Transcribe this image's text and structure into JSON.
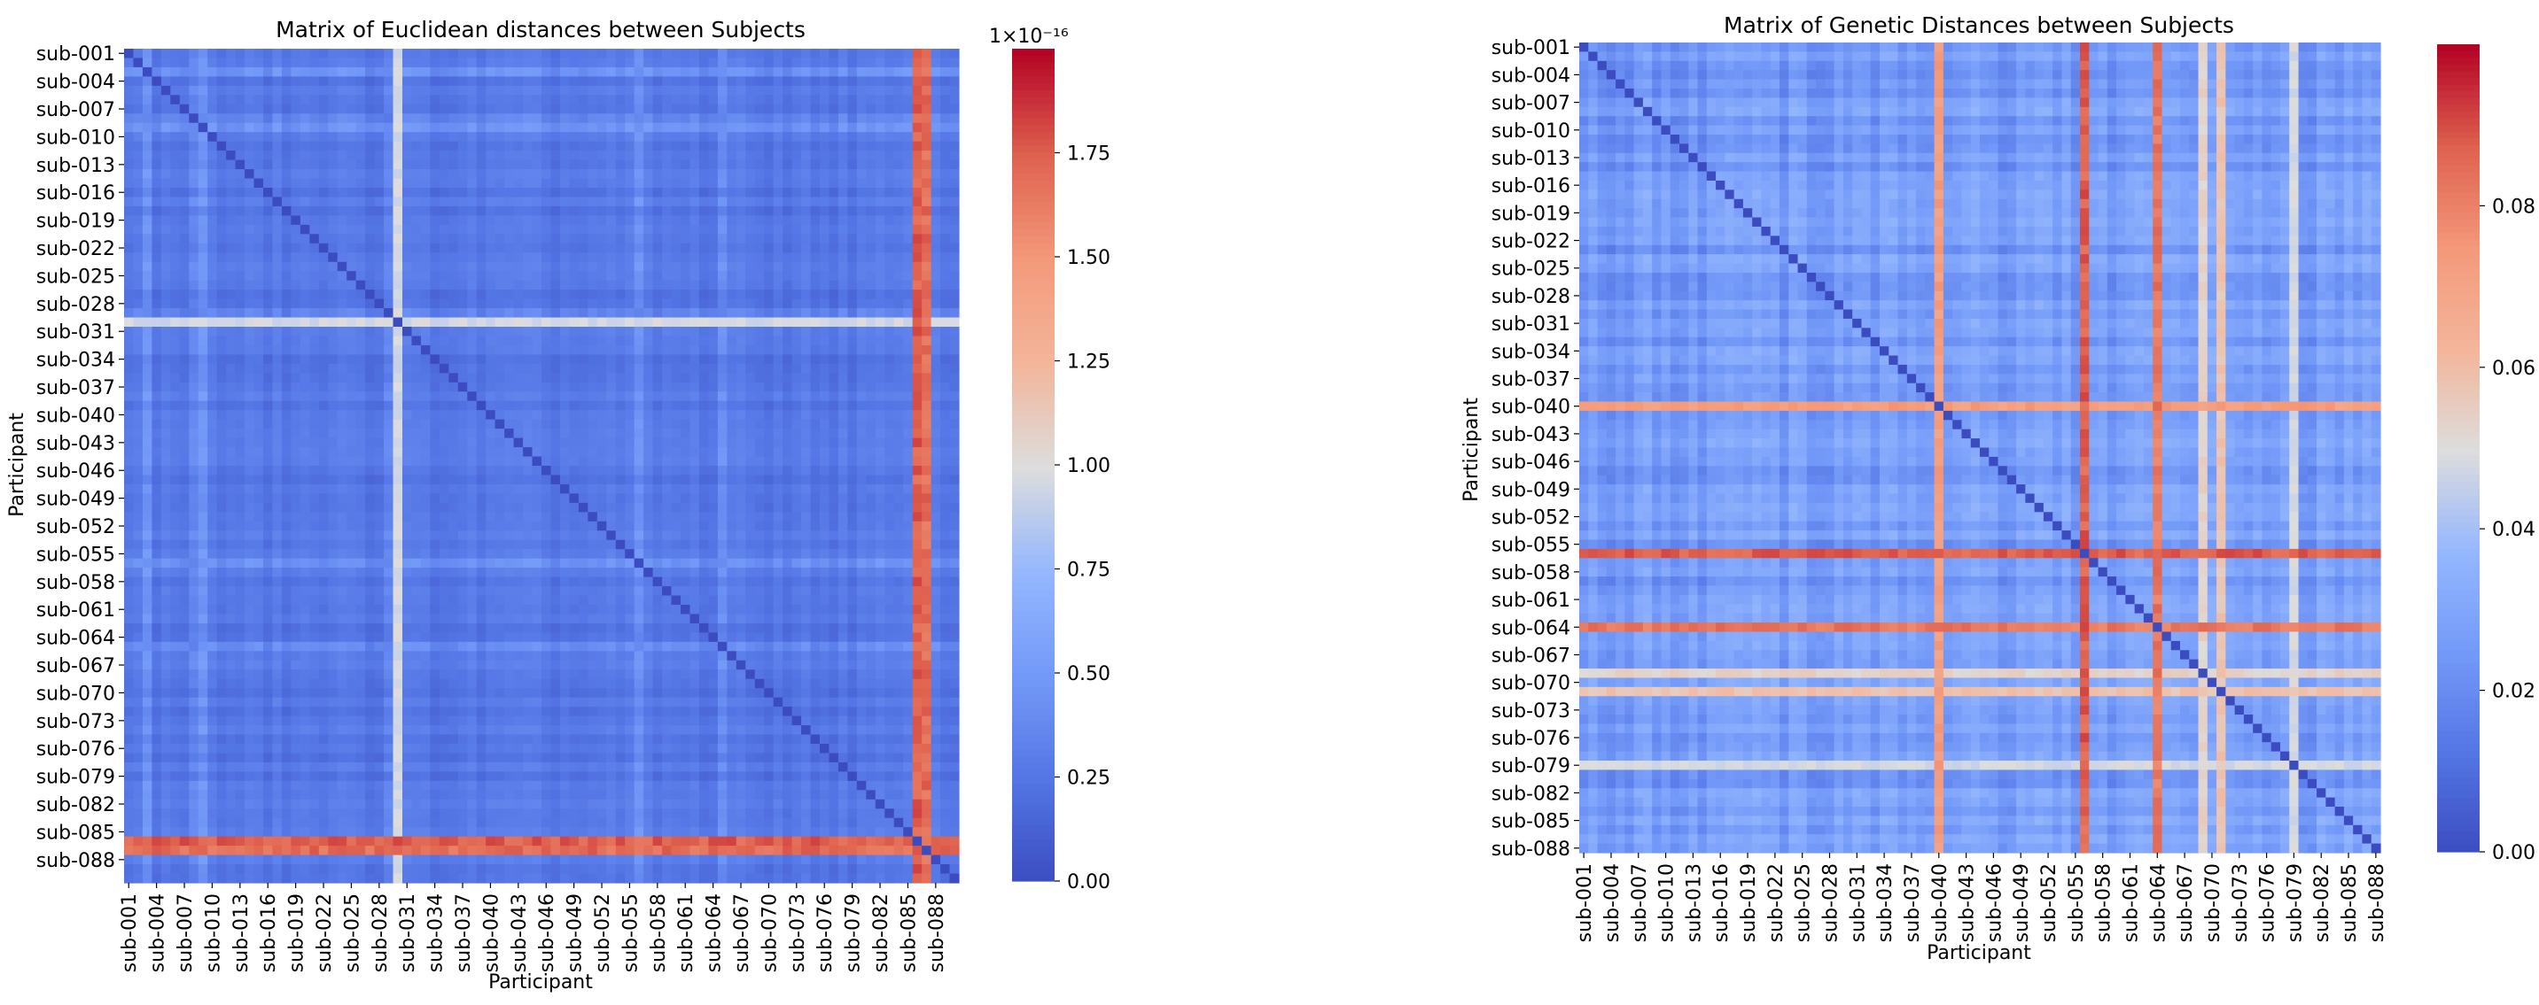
{
  "chart_data": [
    {
      "type": "heatmap",
      "title": "Matrix of Euclidean distances between Subjects",
      "xlabel": "Participant",
      "ylabel": "Participant",
      "n": 90,
      "subjects_prefix": "sub-",
      "y_tick_labels": [
        "sub-001",
        "sub-004",
        "sub-007",
        "sub-010",
        "sub-013",
        "sub-016",
        "sub-019",
        "sub-022",
        "sub-025",
        "sub-028",
        "sub-031",
        "sub-034",
        "sub-037",
        "sub-040",
        "sub-043",
        "sub-046",
        "sub-049",
        "sub-052",
        "sub-055",
        "sub-058",
        "sub-061",
        "sub-064",
        "sub-067",
        "sub-070",
        "sub-073",
        "sub-076",
        "sub-079",
        "sub-082",
        "sub-085",
        "sub-088"
      ],
      "x_tick_labels": [
        "sub-001",
        "sub-004",
        "sub-007",
        "sub-010",
        "sub-013",
        "sub-016",
        "sub-019",
        "sub-022",
        "sub-025",
        "sub-028",
        "sub-031",
        "sub-034",
        "sub-037",
        "sub-040",
        "sub-043",
        "sub-046",
        "sub-049",
        "sub-052",
        "sub-055",
        "sub-058",
        "sub-061",
        "sub-064",
        "sub-067",
        "sub-070",
        "sub-073",
        "sub-076",
        "sub-079",
        "sub-082",
        "sub-085",
        "sub-088"
      ],
      "colorbar": {
        "colormap": "coolwarm",
        "vmin": 0.0,
        "vmax": 2.0,
        "ticks": [
          "0.00",
          "0.25",
          "0.50",
          "0.75",
          "1.00",
          "1.25",
          "1.50",
          "1.75"
        ],
        "tick_values": [
          0,
          0.25,
          0.5,
          0.75,
          1.0,
          1.25,
          1.5,
          1.75
        ],
        "scale_label": "1×10⁻¹⁶"
      },
      "base_value": 0.25,
      "highlight_rows": [
        {
          "subject": "sub-030",
          "value": 1.0
        },
        {
          "subject": "sub-086",
          "value": 1.8
        },
        {
          "subject": "sub-087",
          "value": 1.75
        }
      ],
      "minor_bright_rows": [
        "sub-003",
        "sub-008",
        "sub-009",
        "sub-029",
        "sub-056",
        "sub-065"
      ]
    },
    {
      "type": "heatmap",
      "title": "Matrix of Genetic Distances between Subjects",
      "xlabel": "Participant",
      "ylabel": "Participant",
      "n": 88,
      "subjects_prefix": "sub-",
      "y_tick_labels": [
        "sub-001",
        "sub-004",
        "sub-007",
        "sub-010",
        "sub-013",
        "sub-016",
        "sub-019",
        "sub-022",
        "sub-025",
        "sub-028",
        "sub-031",
        "sub-034",
        "sub-037",
        "sub-040",
        "sub-043",
        "sub-046",
        "sub-049",
        "sub-052",
        "sub-055",
        "sub-058",
        "sub-061",
        "sub-064",
        "sub-067",
        "sub-070",
        "sub-073",
        "sub-076",
        "sub-079",
        "sub-082",
        "sub-085",
        "sub-088"
      ],
      "x_tick_labels": [
        "sub-001",
        "sub-004",
        "sub-007",
        "sub-010",
        "sub-013",
        "sub-016",
        "sub-019",
        "sub-022",
        "sub-025",
        "sub-028",
        "sub-031",
        "sub-034",
        "sub-037",
        "sub-040",
        "sub-043",
        "sub-046",
        "sub-049",
        "sub-052",
        "sub-055",
        "sub-058",
        "sub-061",
        "sub-064",
        "sub-067",
        "sub-070",
        "sub-073",
        "sub-076",
        "sub-079",
        "sub-082",
        "sub-085",
        "sub-088"
      ],
      "colorbar": {
        "colormap": "coolwarm",
        "vmin": 0.0,
        "vmax": 0.1,
        "ticks": [
          "0.00",
          "0.02",
          "0.04",
          "0.06",
          "0.08"
        ],
        "tick_values": [
          0,
          0.02,
          0.04,
          0.06,
          0.08
        ]
      },
      "base_value": 0.025,
      "highlight_rows": [
        {
          "subject": "sub-040",
          "value": 0.075
        },
        {
          "subject": "sub-056",
          "value": 0.09
        },
        {
          "subject": "sub-064",
          "value": 0.085
        },
        {
          "subject": "sub-069",
          "value": 0.055
        },
        {
          "subject": "sub-071",
          "value": 0.06
        },
        {
          "subject": "sub-079",
          "value": 0.05
        }
      ]
    }
  ]
}
